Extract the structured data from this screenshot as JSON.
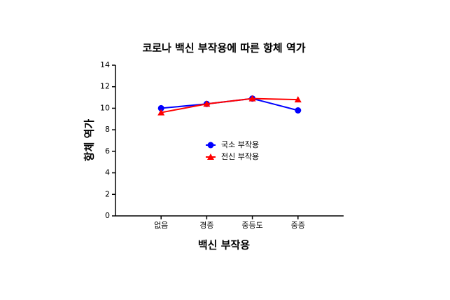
{
  "chart_data": {
    "type": "line",
    "title": "코로나 백신 부작용에 따른 항체 역가",
    "x_label": "백신 부작용",
    "y_label": "항체 역가",
    "categories": [
      "없음",
      "경증",
      "중등도",
      "중증"
    ],
    "series": [
      {
        "name": "국소 부작용",
        "color": "#0000ff",
        "marker": "circle",
        "values": [
          10.0,
          10.4,
          10.9,
          9.8
        ]
      },
      {
        "name": "전신 부작용",
        "color": "#ff0000",
        "marker": "triangle",
        "values": [
          9.6,
          10.4,
          10.9,
          10.8
        ]
      }
    ],
    "ylim": [
      0,
      14
    ],
    "yticks": [
      0,
      2,
      4,
      6,
      8,
      10,
      12,
      14
    ]
  }
}
